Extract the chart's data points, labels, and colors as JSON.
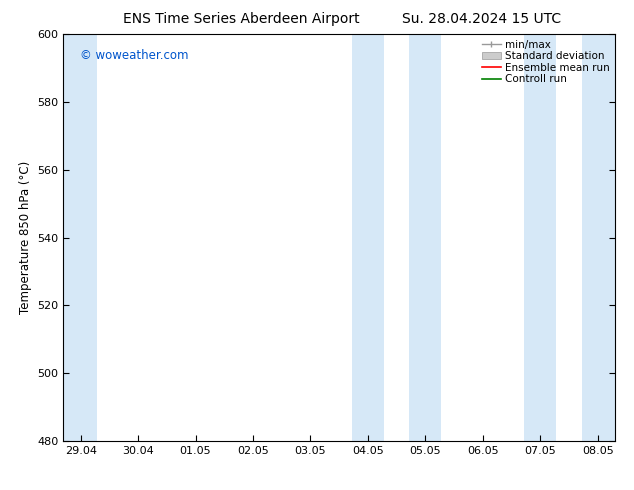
{
  "title_left": "ENS Time Series Aberdeen Airport",
  "title_right": "Su. 28.04.2024 15 UTC",
  "ylabel": "Temperature 850 hPa (°C)",
  "ylim": [
    480,
    600
  ],
  "yticks": [
    480,
    500,
    520,
    540,
    560,
    580,
    600
  ],
  "xlabel_ticks": [
    "29.04",
    "30.04",
    "01.05",
    "02.05",
    "03.05",
    "04.05",
    "05.05",
    "06.05",
    "07.05",
    "08.05"
  ],
  "background_color": "#ffffff",
  "plot_bg_color": "#ffffff",
  "band_color": "#d6e8f7",
  "legend_labels": [
    "min/max",
    "Standard deviation",
    "Ensemble mean run",
    "Controll run"
  ],
  "legend_line_colors": [
    "#999999",
    "#bbbbbb",
    "#ff0000",
    "#008000"
  ],
  "watermark": "© woweather.com",
  "watermark_color": "#0055cc",
  "title_fontsize": 10,
  "tick_fontsize": 8,
  "ylabel_fontsize": 8.5,
  "legend_fontsize": 7.5
}
